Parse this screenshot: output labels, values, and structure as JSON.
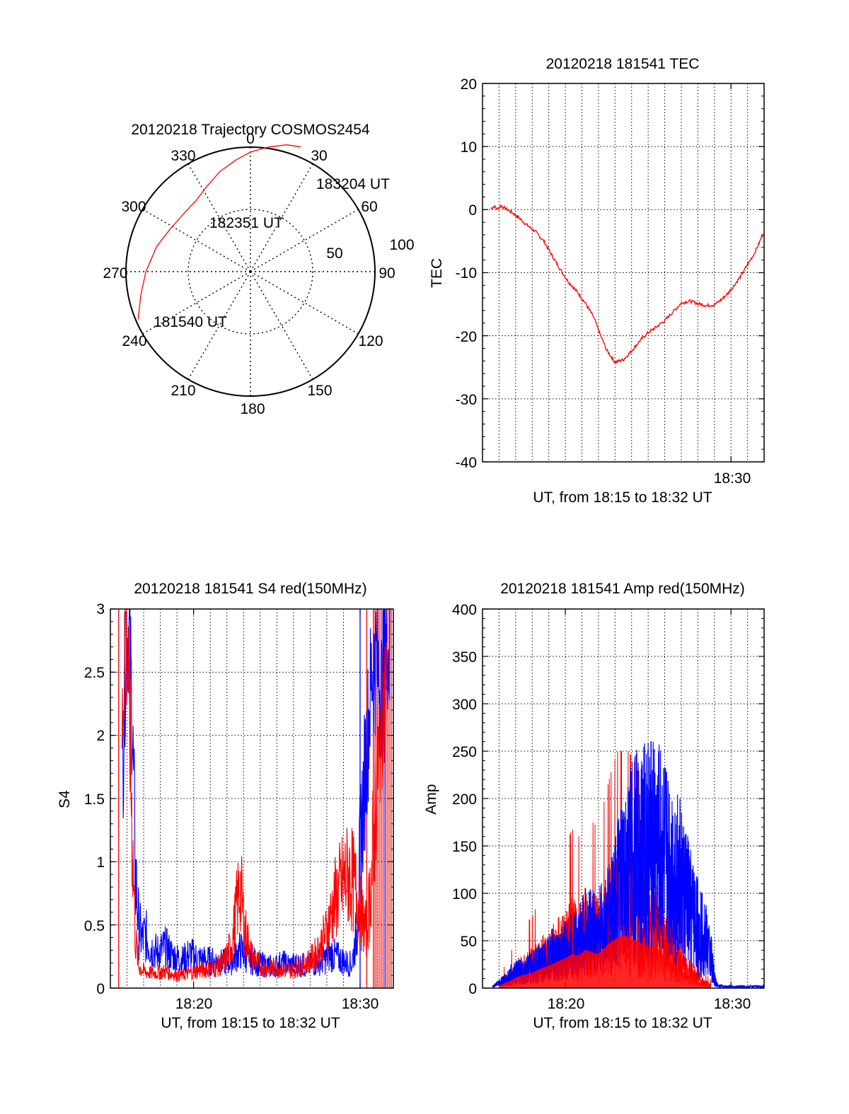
{
  "colors": {
    "red": "#ff0000",
    "blue": "#0000ff",
    "axis": "#000000",
    "grid": "#000000"
  },
  "chart_data": [
    {
      "id": "polar",
      "type": "polar",
      "title": "20120218 Trajectory COSMOS2454",
      "azimuth_labels": [
        "0",
        "30",
        "60",
        "90",
        "120",
        "150",
        "180",
        "210",
        "240",
        "270",
        "300",
        "330"
      ],
      "elevation_rings": [
        50,
        100
      ],
      "radius_labels": [
        "50",
        "100"
      ],
      "trajectory": {
        "color": "#ff0000",
        "points": [
          {
            "azimuth": 247,
            "zenith": 98
          },
          {
            "azimuth": 258,
            "zenith": 90
          },
          {
            "azimuth": 270,
            "zenith": 84
          },
          {
            "azimuth": 285,
            "zenith": 78
          },
          {
            "azimuth": 298,
            "zenith": 73
          },
          {
            "azimuth": 310,
            "zenith": 71
          },
          {
            "azimuth": 323,
            "zenith": 72
          },
          {
            "azimuth": 333,
            "zenith": 77
          },
          {
            "azimuth": 343,
            "zenith": 84
          },
          {
            "azimuth": 352,
            "zenith": 90
          },
          {
            "azimuth": 0,
            "zenith": 96
          },
          {
            "azimuth": 8,
            "zenith": 101
          },
          {
            "azimuth": 16,
            "zenith": 106
          },
          {
            "azimuth": 22,
            "zenith": 108
          }
        ]
      },
      "point_labels": [
        "183204 UT",
        "182351 UT",
        "181540 UT"
      ]
    },
    {
      "id": "tec",
      "type": "line",
      "title": "20120218 181541 TEC",
      "xlabel": "UT, from 18:15 to 18:32 UT",
      "ylabel": "TEC",
      "xlim": [
        18.25,
        18.5333
      ],
      "ylim": [
        -40,
        20
      ],
      "yticks": [
        -40,
        -30,
        -20,
        -10,
        0,
        10,
        20
      ],
      "ytick_labels": [
        "-40",
        "-30",
        "-20",
        "-10",
        "0",
        "10",
        "20"
      ],
      "xticks": [
        18.5
      ],
      "xtick_labels": [
        "18:30"
      ],
      "series": [
        {
          "name": "TEC",
          "color": "#ff0000",
          "x": [
            18.2583,
            18.2617,
            18.265,
            18.2683,
            18.2717,
            18.275,
            18.28,
            18.2867,
            18.295,
            18.3033,
            18.3117,
            18.32,
            18.3283,
            18.3367,
            18.345,
            18.3533,
            18.3617,
            18.3683,
            18.375,
            18.3833,
            18.3917,
            18.4,
            18.4083,
            18.4167,
            18.425,
            18.4333,
            18.4417,
            18.45,
            18.4583,
            18.4667,
            18.475,
            18.4833,
            18.49,
            18.4967,
            18.5033,
            18.51,
            18.5167,
            18.5233,
            18.5283,
            18.5333
          ],
          "values": [
            0.2,
            0.5,
            0.1,
            0.6,
            0.3,
            0.0,
            -0.5,
            -1.3,
            -2.5,
            -3.5,
            -5.0,
            -7.3,
            -9.5,
            -11.5,
            -13.0,
            -14.8,
            -17.0,
            -19.8,
            -22.3,
            -24.2,
            -23.8,
            -22.4,
            -20.8,
            -19.5,
            -18.6,
            -17.6,
            -16.2,
            -14.8,
            -14.5,
            -14.9,
            -15.2,
            -15.1,
            -14.3,
            -13.3,
            -12.0,
            -10.5,
            -8.7,
            -7.0,
            -5.3,
            -3.4
          ]
        }
      ]
    },
    {
      "id": "s4",
      "type": "line",
      "title": "20120218 181541 S4 red(150MHz)",
      "xlabel": "UT, from 18:15 to 18:32 UT",
      "ylabel": "S4",
      "xlim": [
        18.25,
        18.5333
      ],
      "ylim": [
        0,
        3
      ],
      "yticks": [
        0,
        0.5,
        1,
        1.5,
        2,
        2.5,
        3
      ],
      "ytick_labels": [
        "0",
        "0.5",
        "1",
        "1.5",
        "2",
        "2.5",
        "3"
      ],
      "xticks": [
        18.3333,
        18.5
      ],
      "xtick_labels": [
        "18:20",
        "18:30"
      ],
      "series": [
        {
          "name": "blue",
          "color": "#0000ff",
          "x": [
            18.2617,
            18.265,
            18.2683,
            18.2717,
            18.275,
            18.2783,
            18.2817,
            18.285,
            18.29,
            18.2967,
            18.305,
            18.3133,
            18.3217,
            18.33,
            18.3383,
            18.3467,
            18.355,
            18.3633,
            18.3717,
            18.38,
            18.3883,
            18.3967,
            18.405,
            18.4133,
            18.4217,
            18.43,
            18.4383,
            18.4467,
            18.455,
            18.4633,
            18.4717,
            18.48,
            18.4867,
            18.4917,
            18.4967,
            18.5017,
            18.5067,
            18.5117,
            18.5167,
            18.5217,
            18.5267,
            18.53
          ],
          "values": [
            1.6,
            2.6,
            2.9,
            2.2,
            0.9,
            0.5,
            0.38,
            0.42,
            0.33,
            0.28,
            0.32,
            0.25,
            0.22,
            0.27,
            0.23,
            0.22,
            0.21,
            0.2,
            0.22,
            0.3,
            0.24,
            0.2,
            0.18,
            0.17,
            0.2,
            0.18,
            0.19,
            0.17,
            0.2,
            0.22,
            0.27,
            0.23,
            0.2,
            0.19,
            0.45,
            1.3,
            1.9,
            2.5,
            2.6,
            2.3,
            2.8,
            2.5
          ]
        },
        {
          "name": "red",
          "color": "#ff0000",
          "x": [
            18.2617,
            18.265,
            18.2683,
            18.2717,
            18.275,
            18.2783,
            18.2817,
            18.285,
            18.29,
            18.2967,
            18.305,
            18.3133,
            18.3217,
            18.33,
            18.3383,
            18.3467,
            18.355,
            18.3633,
            18.3717,
            18.3767,
            18.38,
            18.385,
            18.3917,
            18.4,
            18.4083,
            18.4167,
            18.425,
            18.4333,
            18.4417,
            18.45,
            18.4583,
            18.4667,
            18.475,
            18.4833,
            18.49,
            18.4967,
            18.5017,
            18.5067,
            18.5117,
            18.5167,
            18.5217,
            18.5267
          ],
          "values": [
            2.0,
            2.9,
            2.4,
            1.3,
            0.4,
            0.18,
            0.14,
            0.13,
            0.12,
            0.12,
            0.13,
            0.11,
            0.1,
            0.12,
            0.14,
            0.15,
            0.16,
            0.2,
            0.35,
            0.65,
            0.8,
            0.45,
            0.25,
            0.18,
            0.15,
            0.16,
            0.14,
            0.15,
            0.18,
            0.22,
            0.3,
            0.45,
            0.7,
            0.85,
            0.9,
            0.75,
            0.55,
            0.45,
            0.9,
            1.7,
            2.1,
            2.4
          ]
        }
      ]
    },
    {
      "id": "amp",
      "type": "line",
      "title": "20120218 181541 Amp red(150MHz)",
      "xlabel": "UT, from 18:15 to 18:32 UT",
      "ylabel": "Amp",
      "xlim": [
        18.25,
        18.5333
      ],
      "ylim": [
        0,
        400
      ],
      "yticks": [
        0,
        50,
        100,
        150,
        200,
        250,
        300,
        350,
        400
      ],
      "ytick_labels": [
        "0",
        "50",
        "100",
        "150",
        "200",
        "250",
        "300",
        "350",
        "400"
      ],
      "xticks": [
        18.3333,
        18.5
      ],
      "xtick_labels": [
        "18:20",
        "18:30"
      ],
      "series": [
        {
          "name": "blue",
          "color": "#0000ff",
          "x": [
            18.26,
            18.2667,
            18.2733,
            18.28,
            18.2867,
            18.2933,
            18.3,
            18.3067,
            18.3133,
            18.32,
            18.3267,
            18.3333,
            18.34,
            18.3467,
            18.3533,
            18.36,
            18.3667,
            18.3733,
            18.38,
            18.3867,
            18.3933,
            18.4,
            18.4067,
            18.4133,
            18.42,
            18.4267,
            18.4333,
            18.44,
            18.4467,
            18.4533,
            18.46,
            18.4667,
            18.4733,
            18.48,
            18.4833,
            18.4867,
            18.4933,
            18.5,
            18.5067,
            18.5133,
            18.5233,
            18.5333
          ],
          "values": [
            2,
            6,
            12,
            18,
            20,
            22,
            28,
            30,
            34,
            42,
            40,
            48,
            52,
            60,
            70,
            75,
            70,
            80,
            100,
            120,
            140,
            160,
            170,
            180,
            185,
            175,
            165,
            150,
            140,
            120,
            95,
            80,
            65,
            40,
            12,
            3,
            2,
            2,
            2,
            2,
            2,
            2
          ]
        },
        {
          "name": "red",
          "color": "#ff0000",
          "x": [
            18.2667,
            18.2733,
            18.28,
            18.2867,
            18.2933,
            18.3,
            18.3067,
            18.3133,
            18.32,
            18.3267,
            18.3333,
            18.34,
            18.3467,
            18.3533,
            18.36,
            18.3667,
            18.3733,
            18.38,
            18.3867,
            18.3933,
            18.4,
            18.4067,
            18.4133,
            18.42,
            18.4267,
            18.4333,
            18.44,
            18.4467,
            18.4533,
            18.46,
            18.4667,
            18.4733,
            18.48
          ],
          "values": [
            3,
            6,
            10,
            14,
            16,
            18,
            22,
            25,
            28,
            32,
            35,
            40,
            38,
            45,
            42,
            40,
            48,
            55,
            60,
            62,
            58,
            55,
            50,
            48,
            45,
            38,
            30,
            25,
            18,
            12,
            8,
            4,
            2
          ]
        }
      ]
    }
  ]
}
